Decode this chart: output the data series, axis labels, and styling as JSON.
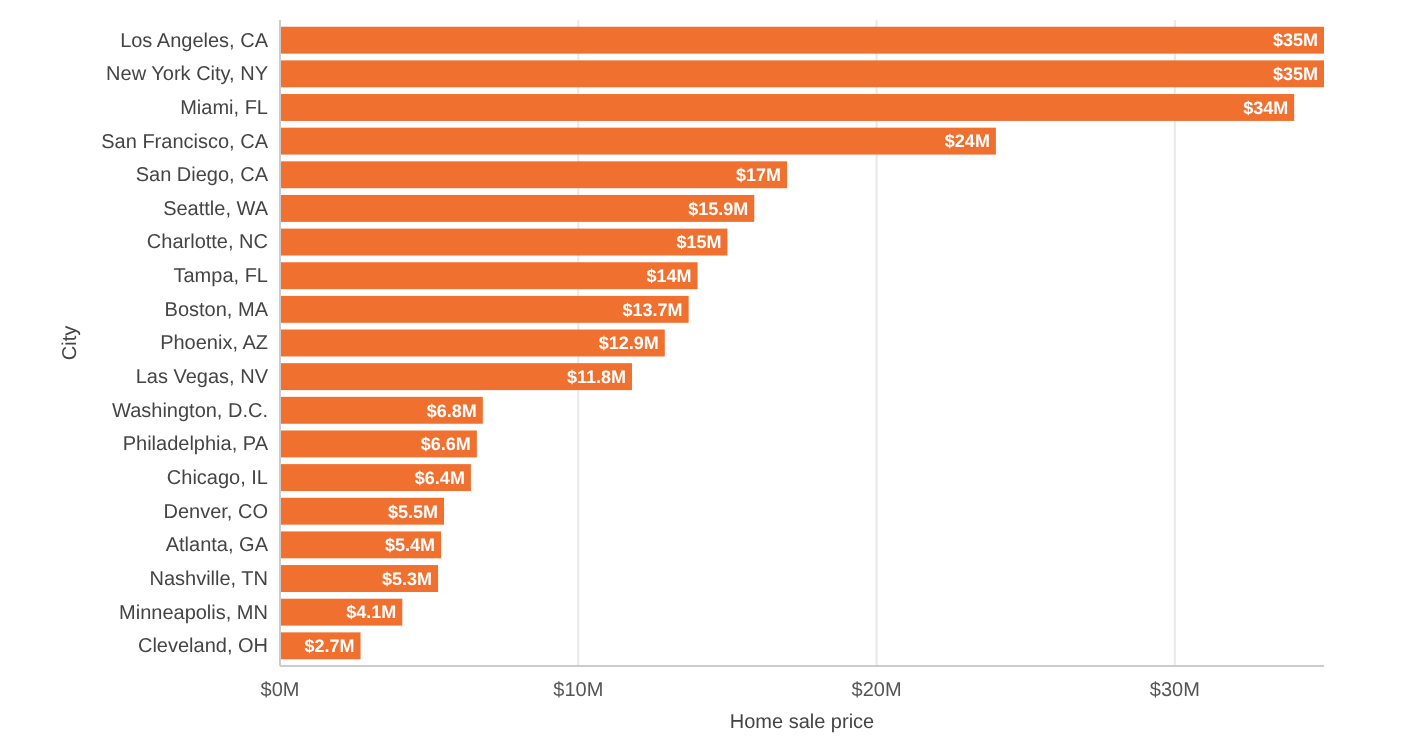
{
  "chart_data": {
    "type": "bar",
    "orientation": "horizontal",
    "xlabel": "Home sale price",
    "ylabel": "City",
    "categories": [
      "Los Angeles, CA",
      "New York City, NY",
      "Miami, FL",
      "San Francisco, CA",
      "San Diego, CA",
      "Seattle, WA",
      "Charlotte, NC",
      "Tampa, FL",
      "Boston, MA",
      "Phoenix, AZ",
      "Las Vegas, NV",
      "Washington, D.C.",
      "Philadelphia, PA",
      "Chicago, IL",
      "Denver, CO",
      "Atlanta, GA",
      "Nashville, TN",
      "Minneapolis, MN",
      "Cleveland, OH"
    ],
    "values": [
      35,
      35,
      34,
      24,
      17,
      15.9,
      15,
      14,
      13.7,
      12.9,
      11.8,
      6.8,
      6.6,
      6.4,
      5.5,
      5.4,
      5.3,
      4.1,
      2.7
    ],
    "value_labels": [
      "$35M",
      "$35M",
      "$34M",
      "$24M",
      "$17M",
      "$15.9M",
      "$15M",
      "$14M",
      "$13.7M",
      "$12.9M",
      "$11.8M",
      "$6.8M",
      "$6.6M",
      "$6.4M",
      "$5.5M",
      "$5.4M",
      "$5.3M",
      "$4.1M",
      "$2.7M"
    ],
    "color": "#f07030",
    "xlim": [
      0,
      35
    ],
    "xticks": [
      {
        "value": 0,
        "label": "$0M"
      },
      {
        "value": 10,
        "label": "$10M"
      },
      {
        "value": 20,
        "label": "$20M"
      },
      {
        "value": 30,
        "label": "$30M"
      }
    ],
    "grid": "x"
  }
}
